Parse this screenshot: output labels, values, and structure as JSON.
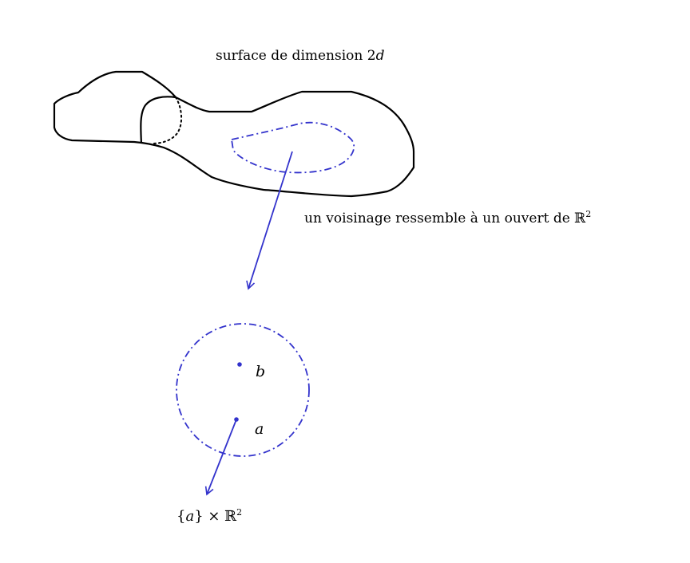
{
  "labels": {
    "title_prefix": "surface de dimension 2",
    "title_var": "d",
    "neighborhood_prefix": "un voisinage ressemble à un ouvert de ℝ",
    "neighborhood_exp": "2",
    "point_b": "b",
    "point_a": "a",
    "set_open": "{",
    "set_var": "a",
    "set_rest": "} × ℝ",
    "set_exp": "2"
  },
  "colors": {
    "outline": "#000000",
    "accent": "#3333cc"
  }
}
